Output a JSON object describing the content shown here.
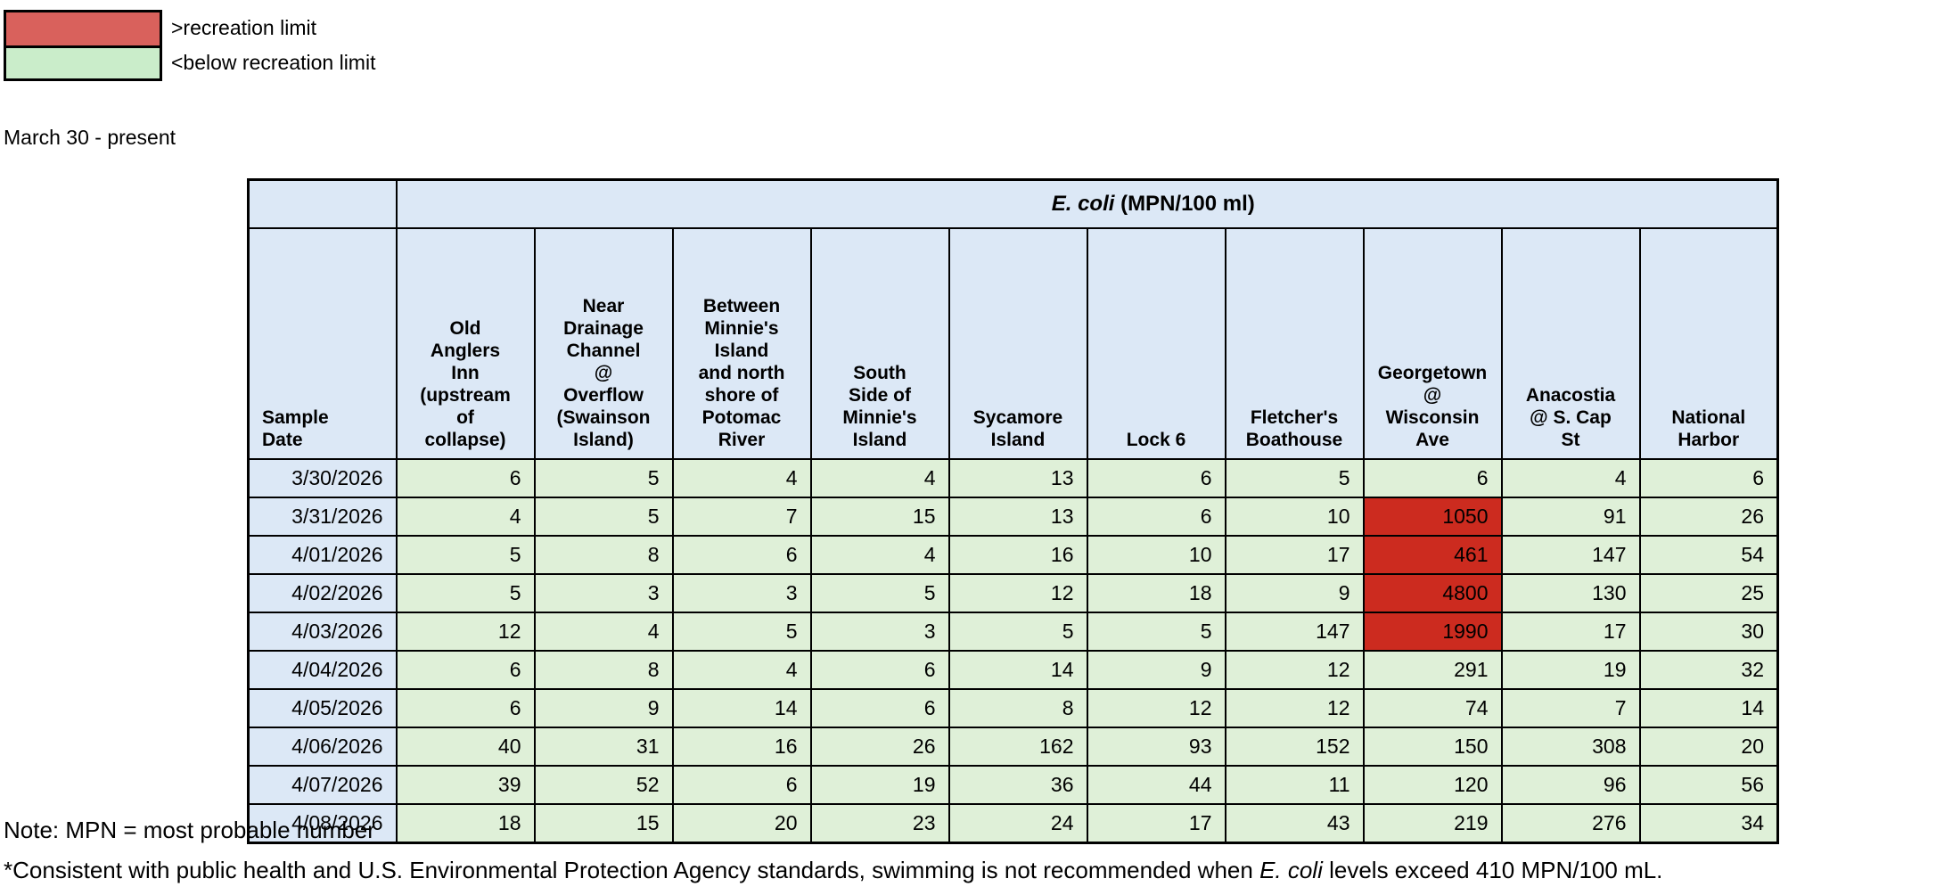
{
  "legend": {
    "above_label": ">recreation limit",
    "below_label": "<below recreation limit"
  },
  "period_label": "March 30 - present",
  "table": {
    "title_italic": "E. coli",
    "title_rest": " (MPN/100 ml)",
    "date_header": "Sample\nDate",
    "site_headers": [
      "Old\nAnglers\nInn\n(upstream\nof\ncollapse)",
      "Near\nDrainage\nChannel\n@\nOverflow\n(Swainson\nIsland)",
      "Between\nMinnie's\nIsland\nand north\nshore of\nPotomac\nRiver",
      "South\nSide of\nMinnie's\nIsland",
      "Sycamore\nIsland",
      "Lock 6",
      "Fletcher's\nBoathouse",
      "Georgetown\n@\nWisconsin\nAve",
      "Anacostia\n@ S. Cap\nSt",
      "National\nHarbor"
    ],
    "recreation_limit": 410,
    "rows": [
      {
        "date": "3/30/2026",
        "values": [
          6,
          5,
          4,
          4,
          13,
          6,
          5,
          6,
          4,
          6
        ]
      },
      {
        "date": "3/31/2026",
        "values": [
          4,
          5,
          7,
          15,
          13,
          6,
          10,
          1050,
          91,
          26
        ]
      },
      {
        "date": "4/01/2026",
        "values": [
          5,
          8,
          6,
          4,
          16,
          10,
          17,
          461,
          147,
          54
        ]
      },
      {
        "date": "4/02/2026",
        "values": [
          5,
          3,
          3,
          5,
          12,
          18,
          9,
          4800,
          130,
          25
        ]
      },
      {
        "date": "4/03/2026",
        "values": [
          12,
          4,
          5,
          3,
          5,
          5,
          147,
          1990,
          17,
          30
        ]
      },
      {
        "date": "4/04/2026",
        "values": [
          6,
          8,
          4,
          6,
          14,
          9,
          12,
          291,
          19,
          32
        ]
      },
      {
        "date": "4/05/2026",
        "values": [
          6,
          9,
          14,
          6,
          8,
          12,
          12,
          74,
          7,
          14
        ]
      },
      {
        "date": "4/06/2026",
        "values": [
          40,
          31,
          16,
          26,
          162,
          93,
          152,
          150,
          308,
          20
        ]
      },
      {
        "date": "4/07/2026",
        "values": [
          39,
          52,
          6,
          19,
          36,
          44,
          11,
          120,
          96,
          56
        ]
      },
      {
        "date": "4/08/2026",
        "values": [
          18,
          15,
          20,
          23,
          24,
          17,
          43,
          219,
          276,
          34
        ]
      }
    ]
  },
  "notes": {
    "line1": "Note: MPN = most probable number",
    "line2_pre": "*Consistent with public health and U.S. Environmental Protection Agency standards, swimming is not recommended when ",
    "line2_italic": "E. coli",
    "line2_post": " levels exceed 410 MPN/100 mL."
  },
  "colors": {
    "legend_above": "#D9615C",
    "legend_below": "#CAEDCA",
    "header_blue": "#DCE8F6",
    "cell_green": "#DFF0D8",
    "alert_red": "#CC2B1F",
    "border": "#000000"
  }
}
